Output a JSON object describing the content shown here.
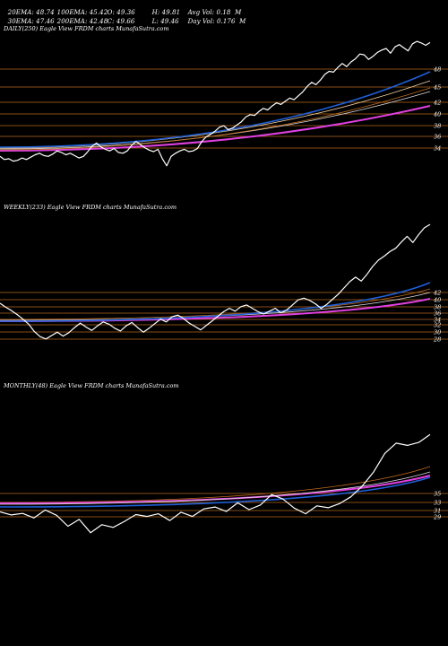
{
  "stats": {
    "ema20": "20EMA: 48.74",
    "ema100": "100EMA: 45.42",
    "open": "O: 49.36",
    "high": "H: 49.81",
    "avgvol": "Avg Vol: 0.18  M",
    "ema30": "30EMA: 47.46",
    "ema200": "200EMA: 42.48",
    "close": "C: 49.66",
    "low": "L: 49.46",
    "dayvol": "Day Vol: 0.176  M"
  },
  "colors": {
    "background": "#000000",
    "price": "#ffffff",
    "level_lines": "#b5651d",
    "ema_blue": "#1f5fd6",
    "ema_magenta": "#e040e0",
    "ema_orange": "#c06a1a"
  },
  "chart_data": [
    {
      "type": "line",
      "title": "DAILY(250) Eagle  View  FRDM charts MunafaSutra.com",
      "yticks": [
        "48",
        "45",
        "42",
        "40",
        "38",
        "36",
        "34"
      ],
      "ylim": [
        32.5,
        50.5
      ],
      "series": [
        {
          "role": "price",
          "values": [
            35.2,
            34.8,
            34.9,
            34.6,
            34.7,
            35.0,
            34.8,
            35.1,
            35.4,
            35.6,
            35.3,
            35.2,
            35.5,
            35.9,
            35.7,
            35.4,
            35.6,
            35.3,
            35.0,
            35.2,
            35.8,
            36.5,
            36.9,
            36.4,
            36.1,
            35.9,
            36.2,
            35.7,
            35.6,
            35.9,
            36.6,
            37.1,
            36.7,
            36.3,
            36.0,
            35.8,
            36.1,
            34.9,
            34.0,
            35.2,
            35.6,
            35.9,
            36.1,
            35.8,
            35.9,
            36.2,
            37.1,
            37.7,
            38.0,
            38.4,
            38.9,
            39.1,
            38.6,
            38.8,
            39.2,
            39.6,
            40.2,
            40.5,
            40.4,
            40.9,
            41.3,
            41.1,
            41.6,
            42.0,
            41.8,
            42.2,
            42.6,
            42.4,
            42.9,
            43.4,
            44.1,
            44.6,
            44.3,
            44.9,
            45.6,
            46.0,
            45.9,
            46.5,
            47.0,
            46.6,
            47.2,
            47.6,
            48.2,
            48.1,
            47.5,
            47.9,
            48.4,
            48.7,
            48.9,
            48.3,
            49.1,
            49.4,
            49.0,
            48.6,
            49.5,
            49.8,
            49.6,
            49.3,
            49.66
          ]
        },
        {
          "role": "ema20",
          "values": [
            35.4,
            35.5,
            35.6,
            35.8,
            36.0,
            36.5,
            37.3,
            38.2,
            39.3,
            40.3,
            41.5,
            42.8,
            44.0,
            45.2,
            46.4,
            47.4,
            48.2,
            48.74
          ]
        },
        {
          "role": "ema100",
          "values": [
            35.9,
            35.8,
            35.8,
            35.9,
            36.0,
            36.2,
            36.6,
            37.1,
            37.7,
            38.3,
            39.1,
            39.9,
            40.8,
            41.7,
            42.7,
            43.6,
            44.5,
            45.42
          ]
        },
        {
          "role": "ema200",
          "values": [
            36.4,
            36.1,
            35.9,
            35.8,
            35.8,
            35.9,
            36.1,
            36.4,
            36.7,
            37.1,
            37.6,
            38.2,
            38.8,
            39.5,
            40.2,
            41.0,
            41.7,
            42.48
          ]
        }
      ]
    },
    {
      "type": "line",
      "title": "WEEKLY(233) Eagle  View  FRDM charts MunafaSutra.com",
      "yticks": [
        "42",
        "40",
        "38",
        "36",
        "34",
        "32",
        "30",
        "28"
      ],
      "ylim": [
        25,
        50
      ],
      "series": [
        {
          "role": "price",
          "values": [
            34.5,
            33.8,
            33.2,
            32.5,
            31.7,
            30.8,
            29.5,
            28.6,
            28.2,
            28.8,
            29.4,
            28.7,
            29.3,
            30.2,
            31.0,
            30.3,
            29.7,
            30.5,
            31.2,
            30.8,
            30.1,
            29.6,
            30.5,
            31.1,
            30.2,
            29.4,
            30.1,
            30.9,
            31.7,
            31.2,
            32.1,
            32.4,
            31.8,
            31.0,
            30.4,
            29.8,
            30.6,
            31.4,
            32.2,
            33.0,
            33.6,
            33.1,
            33.9,
            34.2,
            33.6,
            33.0,
            32.6,
            33.1,
            33.6,
            32.8,
            33.3,
            34.2,
            35.1,
            35.4,
            35.0,
            34.4,
            33.6,
            34.3,
            35.2,
            36.1,
            37.2,
            38.3,
            39.1,
            38.4,
            39.6,
            41.0,
            42.1,
            42.8,
            43.6,
            44.2,
            45.3,
            46.3,
            45.2,
            46.6,
            47.8,
            48.4
          ]
        }
      ]
    },
    {
      "type": "line",
      "title": "MONTHLY(48) Eagle  View  FRDM charts MunafaSutra.com",
      "yticks": [
        "35",
        "33",
        "31",
        "29"
      ],
      "ylim": [
        24,
        62
      ],
      "series": [
        {
          "role": "price",
          "values": [
            31.0,
            30.2,
            30.6,
            29.4,
            31.5,
            30.1,
            27.2,
            29.0,
            25.5,
            27.6,
            26.9,
            28.5,
            30.3,
            29.8,
            30.5,
            28.7,
            30.9,
            29.8,
            31.8,
            32.3,
            31.1,
            33.4,
            31.6,
            32.8,
            35.6,
            34.4,
            32.0,
            30.5,
            32.6,
            32.1,
            33.2,
            35.0,
            37.8,
            41.5,
            46.5,
            49.2,
            48.6,
            49.4,
            51.5
          ]
        }
      ]
    }
  ]
}
